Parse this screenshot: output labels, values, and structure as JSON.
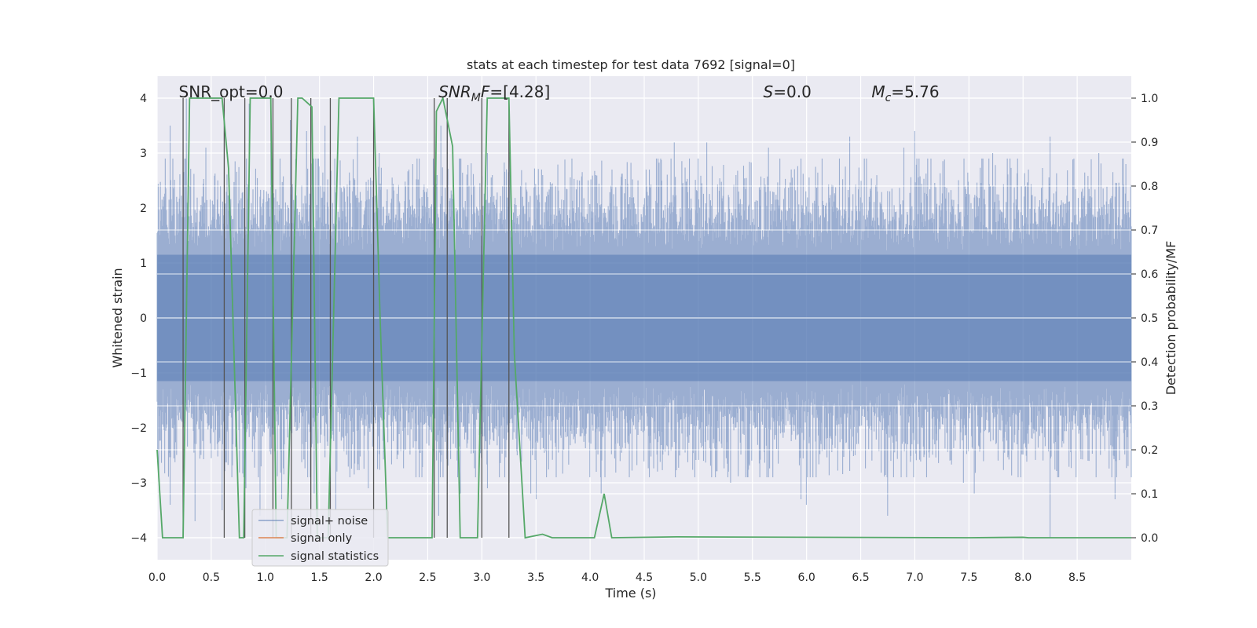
{
  "chart_data": {
    "type": "line",
    "title": "stats at each timestep for test data 7692 [signal=0]",
    "xlabel": "Time (s)",
    "ylabel_left": "Whitened strain",
    "ylabel_right": "Detection probability/MF",
    "xlim": [
      0.0,
      9.0
    ],
    "ylim_left": [
      -4.4,
      4.4
    ],
    "ylim_right": [
      -0.05,
      1.05
    ],
    "x_ticks": [
      0.0,
      0.5,
      1.0,
      1.5,
      2.0,
      2.5,
      3.0,
      3.5,
      4.0,
      4.5,
      5.0,
      5.5,
      6.0,
      6.5,
      7.0,
      7.5,
      8.0,
      8.5
    ],
    "x_tick_labels": [
      "0.0",
      "0.5",
      "1.0",
      "1.5",
      "2.0",
      "2.5",
      "3.0",
      "3.5",
      "4.0",
      "4.5",
      "5.0",
      "5.5",
      "6.0",
      "6.5",
      "7.0",
      "7.5",
      "8.0",
      "8.5"
    ],
    "y_left_ticks": [
      4,
      3,
      2,
      1,
      0,
      -1,
      -2,
      -3,
      -4
    ],
    "y_left_tick_labels": [
      "4",
      "3",
      "2",
      "1",
      "0",
      "−1",
      "−2",
      "−3",
      "−4"
    ],
    "y_right_ticks": [
      1.0,
      0.9,
      0.8,
      0.7,
      0.6,
      0.5,
      0.4,
      0.3,
      0.2,
      0.1,
      0.0
    ],
    "y_right_tick_labels": [
      "1.0",
      "0.9",
      "0.8",
      "0.7",
      "0.6",
      "0.5",
      "0.4",
      "0.3",
      "0.2",
      "0.1",
      "0.0"
    ],
    "annotations": [
      {
        "name": "snr-opt",
        "prefix": "SNR_opt=",
        "value": "0.0",
        "x": 0.2
      },
      {
        "name": "snr-mf",
        "prefix": "SNR",
        "sub": "M",
        "suffix": "F=",
        "value": "[4.28]",
        "x": 2.6
      },
      {
        "name": "s",
        "prefix": "S",
        "suffix": "=",
        "value": "0.0",
        "x": 5.6
      },
      {
        "name": "mc",
        "prefix": "M",
        "sub": "c",
        "suffix": "=",
        "value": "5.76",
        "x": 6.6
      }
    ],
    "series": [
      {
        "name": "signal+ noise",
        "color": "#4c72b0",
        "opacity": 0.5,
        "axis": "left",
        "type": "noise",
        "duration": 9.0,
        "typical_range": [
          -2.4,
          2.4
        ],
        "spikes": [
          [
            0.12,
            3.5
          ],
          [
            0.27,
            4.0
          ],
          [
            0.45,
            3.1
          ],
          [
            0.62,
            3.4
          ],
          [
            0.85,
            3.9
          ],
          [
            1.05,
            3.7
          ],
          [
            1.23,
            3.6
          ],
          [
            1.38,
            3.4
          ],
          [
            1.55,
            3.5
          ],
          [
            1.85,
            3.3
          ],
          [
            2.05,
            3.0
          ],
          [
            2.62,
            3.5
          ],
          [
            2.68,
            4.0
          ],
          [
            3.05,
            3.0
          ],
          [
            3.55,
            2.7
          ],
          [
            4.05,
            2.6
          ],
          [
            4.2,
            2.7
          ],
          [
            4.52,
            2.7
          ],
          [
            4.78,
            3.2
          ],
          [
            5.08,
            3.2
          ],
          [
            5.35,
            2.6
          ],
          [
            5.65,
            3.1
          ],
          [
            5.95,
            2.9
          ],
          [
            6.4,
            3.3
          ],
          [
            6.9,
            3.1
          ],
          [
            7.0,
            3.4
          ],
          [
            7.12,
            2.9
          ],
          [
            7.72,
            3.0
          ],
          [
            8.05,
            2.7
          ],
          [
            8.25,
            3.3
          ],
          [
            8.7,
            3.0
          ],
          [
            8.95,
            2.8
          ]
        ],
        "dips": [
          [
            0.12,
            -3.4
          ],
          [
            0.35,
            -3.7
          ],
          [
            0.6,
            -3.5
          ],
          [
            0.82,
            -3.1
          ],
          [
            0.95,
            -3.6
          ],
          [
            1.15,
            -3.3
          ],
          [
            1.45,
            -3.2
          ],
          [
            1.65,
            -3.5
          ],
          [
            1.95,
            -3.1
          ],
          [
            2.42,
            -2.9
          ],
          [
            2.6,
            -3.6
          ],
          [
            2.8,
            -3.2
          ],
          [
            3.05,
            -3.1
          ],
          [
            3.25,
            -3.0
          ],
          [
            3.45,
            -3.2
          ],
          [
            3.5,
            -3.3
          ],
          [
            4.1,
            -3.2
          ],
          [
            5.3,
            -3.0
          ],
          [
            5.95,
            -3.3
          ],
          [
            6.0,
            -3.4
          ],
          [
            6.75,
            -3.6
          ],
          [
            7.45,
            -3.0
          ],
          [
            7.55,
            -3.2
          ],
          [
            8.25,
            -4.0
          ],
          [
            8.85,
            -3.3
          ]
        ]
      },
      {
        "name": "signal only",
        "color": "#dd8452",
        "axis": "left",
        "x": [
          0.0,
          9.0
        ],
        "y": [
          0.0,
          0.0
        ]
      },
      {
        "name": "signal statistics",
        "color": "#55a868",
        "axis": "right",
        "x": [
          0.0,
          0.05,
          0.18,
          0.24,
          0.3,
          0.6,
          0.66,
          0.76,
          0.8,
          0.86,
          1.05,
          1.1,
          1.2,
          1.3,
          1.34,
          1.43,
          1.48,
          1.58,
          1.68,
          2.0,
          2.06,
          2.13,
          2.25,
          2.5,
          2.54,
          2.58,
          2.64,
          2.73,
          2.8,
          2.96,
          3.05,
          3.1,
          3.25,
          3.3,
          3.4,
          3.5,
          3.56,
          3.65,
          4.04,
          4.13,
          4.2,
          4.8,
          7.5,
          8.0,
          8.05,
          9.0
        ],
        "y": [
          0.2,
          0.0,
          0.0,
          0.0,
          1.0,
          1.0,
          0.84,
          0.0,
          0.0,
          1.0,
          1.0,
          0.0,
          0.0,
          1.0,
          1.0,
          0.98,
          0.0,
          0.0,
          1.0,
          1.0,
          0.5,
          0.0,
          0.0,
          0.0,
          0.0,
          0.97,
          1.0,
          0.89,
          0.0,
          0.0,
          1.0,
          1.0,
          1.0,
          0.42,
          0.0,
          0.005,
          0.008,
          0.0,
          0.0,
          0.1,
          0.0,
          0.002,
          0.0,
          0.001,
          0.0,
          0.0
        ]
      }
    ],
    "markers": {
      "name": "detection markers",
      "color": "#555555",
      "axis": "right",
      "x": [
        0.24,
        0.62,
        0.81,
        1.07,
        1.24,
        1.42,
        1.6,
        2.0,
        2.56,
        2.68,
        3.0,
        3.25
      ],
      "y0": [
        0.0,
        0.0,
        0.0,
        0.0,
        0.0,
        0.0,
        0.0,
        0.0,
        0.0,
        0.0,
        0.0,
        0.0
      ],
      "y1": [
        1.0,
        1.0,
        1.0,
        1.0,
        1.0,
        1.0,
        1.0,
        1.0,
        1.0,
        1.0,
        1.0,
        1.0
      ]
    },
    "legend": {
      "placement": "lower-left",
      "entries": [
        "signal+ noise",
        "signal only",
        "signal statistics"
      ]
    },
    "grid": true,
    "background": "#eaeaf2"
  }
}
